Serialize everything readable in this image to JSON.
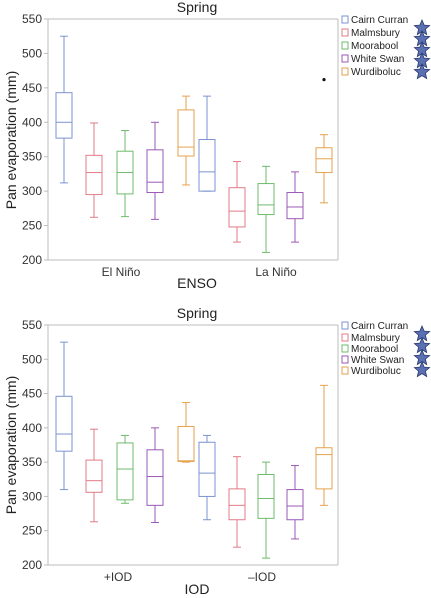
{
  "colors": {
    "Cairn Curran": "#7b93d1",
    "Malmsbury": "#e07b87",
    "Moorabool": "#6dbb6d",
    "White Swan": "#9a59b5",
    "Wurdiboluc": "#e6a24f",
    "star_fill": "#5a70b2",
    "star_stroke": "#2a3a6e"
  },
  "chart_data": [
    {
      "type": "box",
      "title": "Spring",
      "xlabel": "ENSO",
      "ylabel": "Pan evaporation (mm)",
      "ylim": [
        200,
        550
      ],
      "yticks": [
        200,
        250,
        300,
        350,
        400,
        450,
        500,
        550
      ],
      "categories": [
        "El Niño",
        "La Niño"
      ],
      "legend_position": "right-top",
      "starred_series": [
        "Cairn Curran",
        "Malmsbury",
        "Moorabool",
        "White Swan",
        "Wurdiboluc"
      ],
      "series": [
        {
          "name": "Cairn Curran",
          "boxes": [
            {
              "whislo": 312,
              "q1": 377,
              "med": 400,
              "q3": 443,
              "whishi": 525,
              "fliers": []
            },
            {
              "whislo": 300,
              "q1": 300,
              "med": 328,
              "q3": 375,
              "whishi": 438,
              "fliers": []
            }
          ]
        },
        {
          "name": "Malmsbury",
          "boxes": [
            {
              "whislo": 262,
              "q1": 295,
              "med": 327,
              "q3": 352,
              "whishi": 399,
              "fliers": []
            },
            {
              "whislo": 226,
              "q1": 248,
              "med": 271,
              "q3": 305,
              "whishi": 343,
              "fliers": []
            }
          ]
        },
        {
          "name": "Moorabool",
          "boxes": [
            {
              "whislo": 263,
              "q1": 296,
              "med": 327,
              "q3": 358,
              "whishi": 388,
              "fliers": []
            },
            {
              "whislo": 211,
              "q1": 266,
              "med": 280,
              "q3": 311,
              "whishi": 336,
              "fliers": []
            }
          ]
        },
        {
          "name": "White Swan",
          "boxes": [
            {
              "whislo": 259,
              "q1": 298,
              "med": 313,
              "q3": 360,
              "whishi": 400,
              "fliers": []
            },
            {
              "whislo": 226,
              "q1": 260,
              "med": 277,
              "q3": 298,
              "whishi": 328,
              "fliers": []
            }
          ]
        },
        {
          "name": "Wurdiboluc",
          "boxes": [
            {
              "whislo": 309,
              "q1": 351,
              "med": 364,
              "q3": 418,
              "whishi": 438,
              "fliers": []
            },
            {
              "whislo": 283,
              "q1": 327,
              "med": 347,
              "q3": 363,
              "whishi": 382,
              "fliers": [
                462
              ]
            }
          ]
        }
      ]
    },
    {
      "type": "box",
      "title": "Spring",
      "xlabel": "IOD",
      "ylabel": "Pan evaporation (mm)",
      "ylim": [
        200,
        550
      ],
      "yticks": [
        200,
        250,
        300,
        350,
        400,
        450,
        500,
        550
      ],
      "categories": [
        "+IOD",
        "–IOD"
      ],
      "legend_position": "right-top",
      "starred_series": [
        "Cairn Curran",
        "Malmsbury",
        "Moorabool",
        "White Swan"
      ],
      "series": [
        {
          "name": "Cairn Curran",
          "boxes": [
            {
              "whislo": 310,
              "q1": 366,
              "med": 391,
              "q3": 446,
              "whishi": 525,
              "fliers": []
            },
            {
              "whislo": 266,
              "q1": 300,
              "med": 334,
              "q3": 379,
              "whishi": 389,
              "fliers": []
            }
          ]
        },
        {
          "name": "Malmsbury",
          "boxes": [
            {
              "whislo": 263,
              "q1": 306,
              "med": 323,
              "q3": 353,
              "whishi": 398,
              "fliers": []
            },
            {
              "whislo": 226,
              "q1": 266,
              "med": 287,
              "q3": 311,
              "whishi": 358,
              "fliers": []
            }
          ]
        },
        {
          "name": "Moorabool",
          "boxes": [
            {
              "whislo": 290,
              "q1": 295,
              "med": 340,
              "q3": 378,
              "whishi": 389,
              "fliers": []
            },
            {
              "whislo": 210,
              "q1": 268,
              "med": 297,
              "q3": 332,
              "whishi": 350,
              "fliers": []
            }
          ]
        },
        {
          "name": "White Swan",
          "boxes": [
            {
              "whislo": 262,
              "q1": 287,
              "med": 329,
              "q3": 368,
              "whishi": 400,
              "fliers": []
            },
            {
              "whislo": 238,
              "q1": 266,
              "med": 286,
              "q3": 310,
              "whishi": 345,
              "fliers": []
            }
          ]
        },
        {
          "name": "Wurdiboluc",
          "boxes": [
            {
              "whislo": 350,
              "q1": 351,
              "med": 352,
              "q3": 402,
              "whishi": 437,
              "fliers": []
            },
            {
              "whislo": 287,
              "q1": 311,
              "med": 361,
              "q3": 371,
              "whishi": 462,
              "fliers": []
            }
          ]
        }
      ]
    }
  ]
}
